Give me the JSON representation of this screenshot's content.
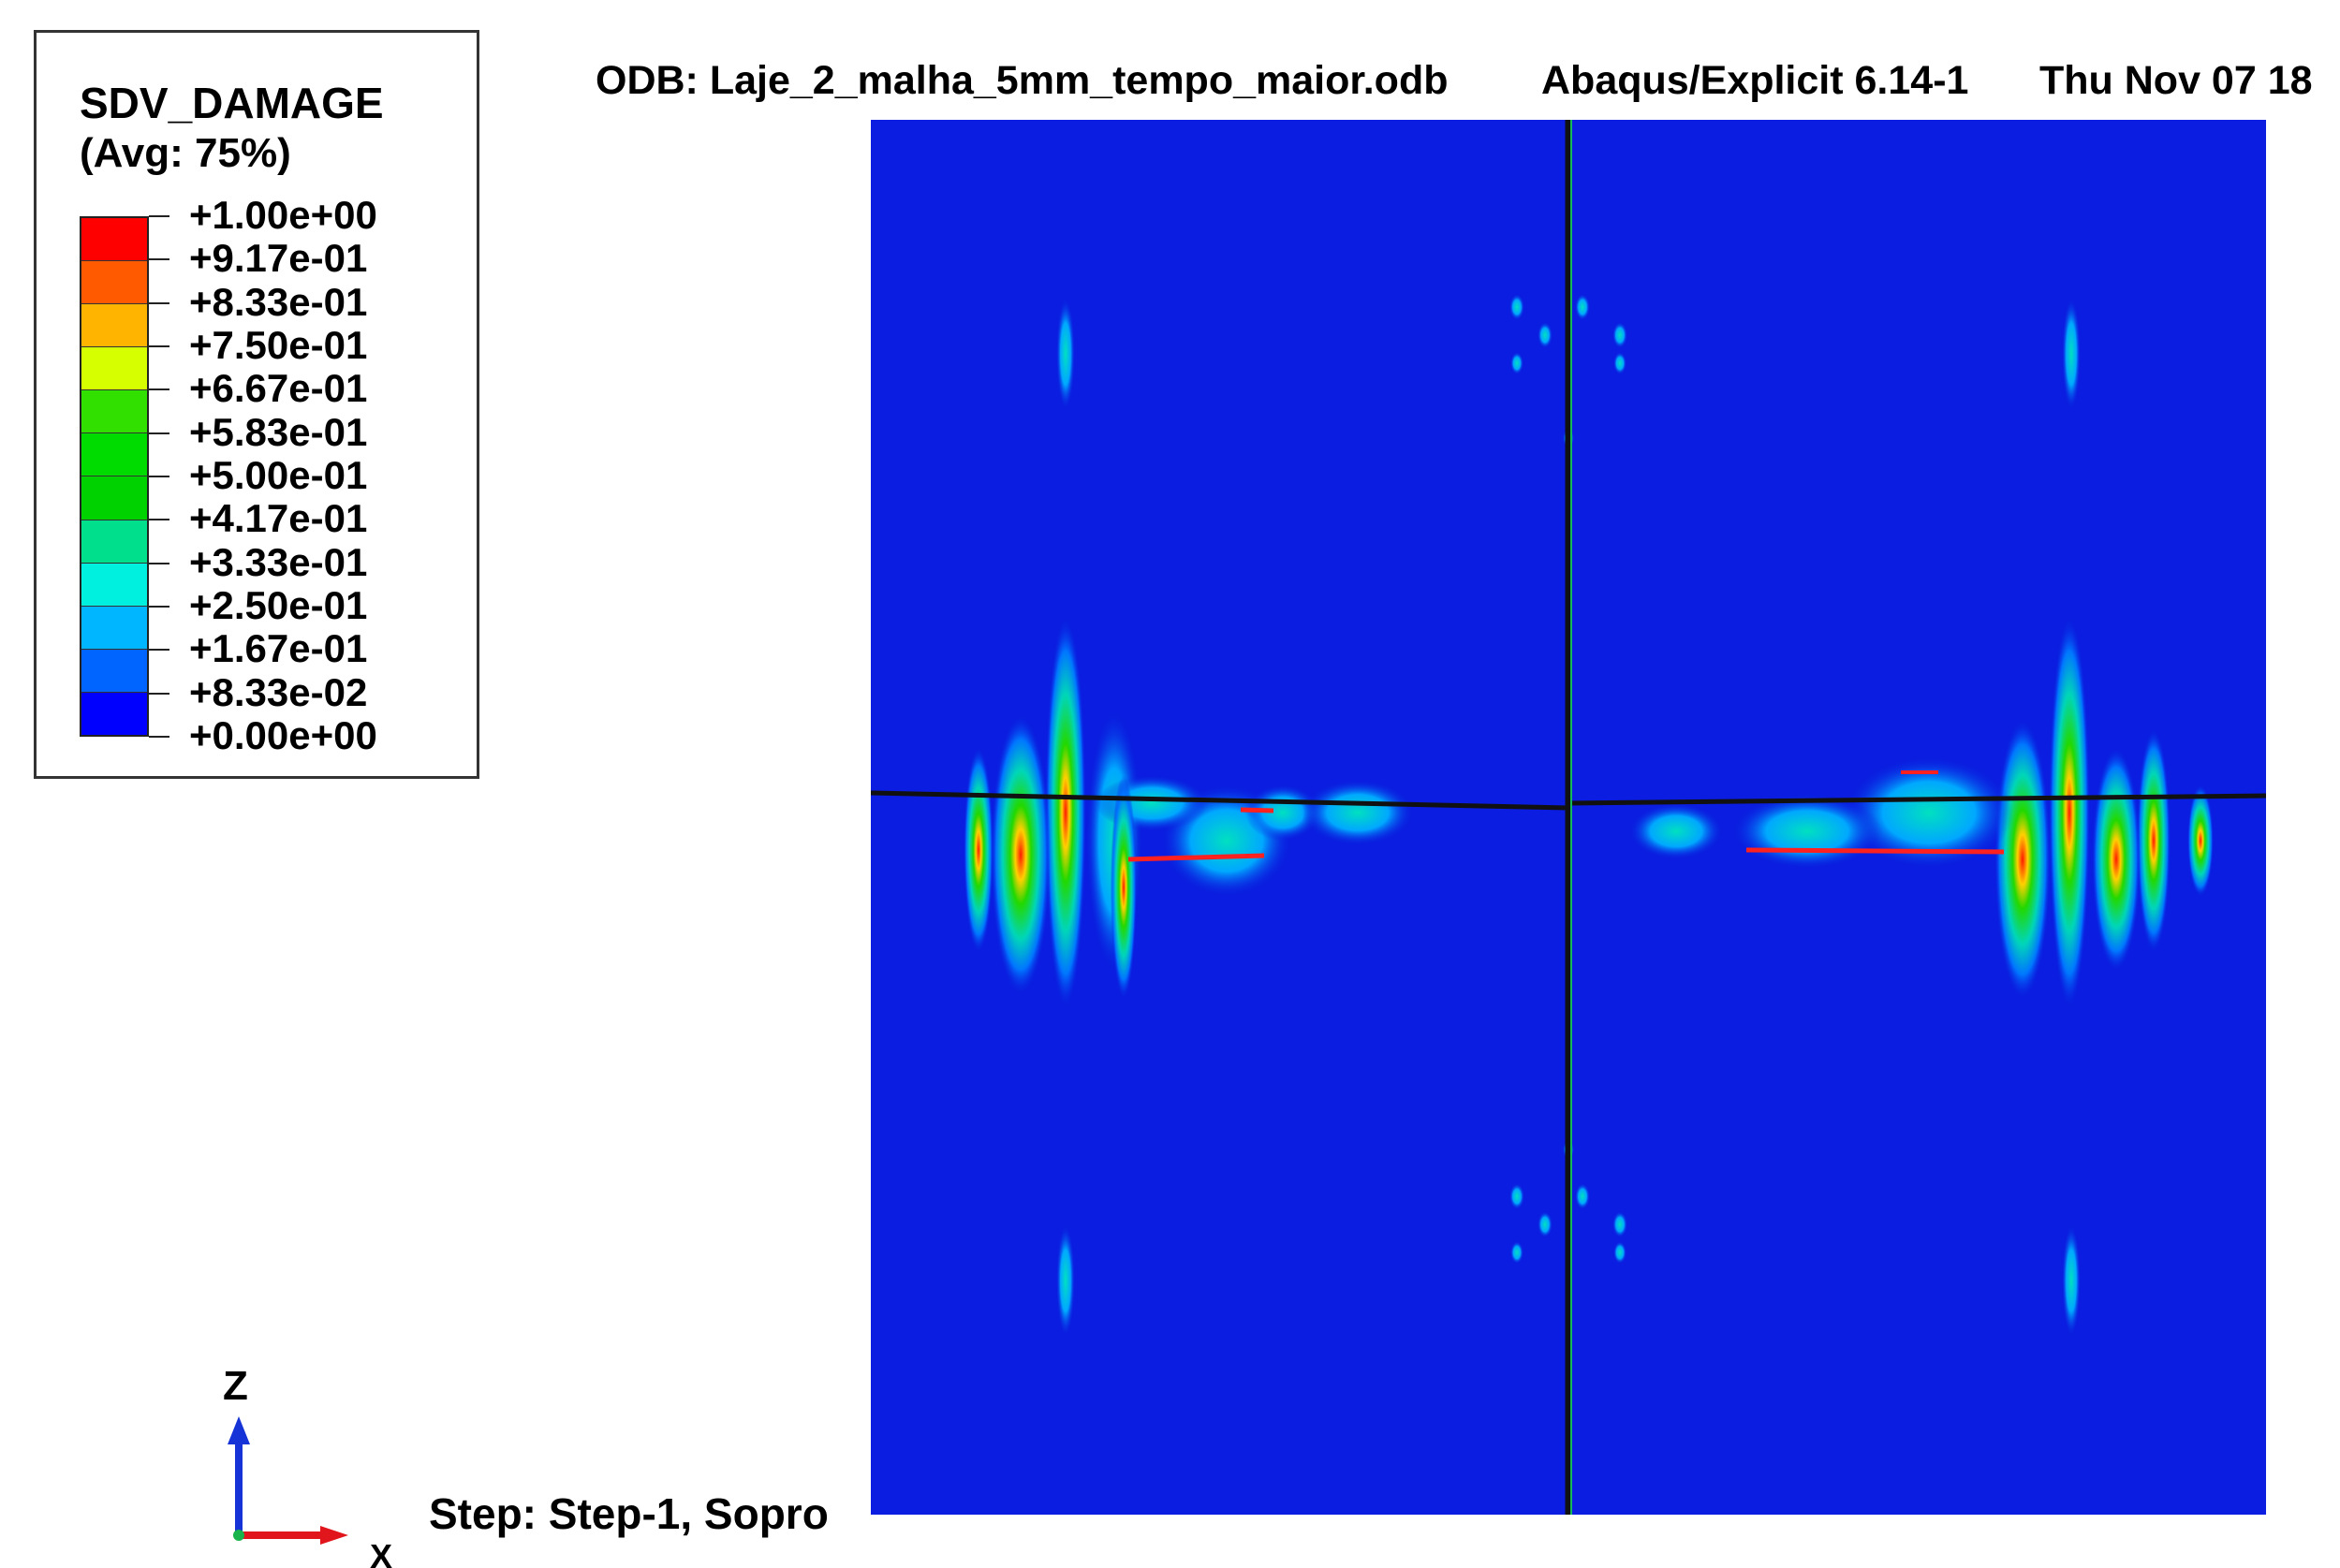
{
  "header": {
    "odb": "ODB: Laje_2_malha_5mm_tempo_maior.odb",
    "solver": "Abaqus/Explicit 6.14-1",
    "date": "Thu Nov 07 18"
  },
  "legend": {
    "title": "SDV_DAMAGE",
    "avg": "(Avg: 75%)",
    "colors": [
      "#ff0000",
      "#ff5a00",
      "#ffb400",
      "#d6ff00",
      "#32e000",
      "#00dc00",
      "#00d200",
      "#00e08c",
      "#00f0e0",
      "#00b6ff",
      "#0064ff",
      "#0000ff"
    ],
    "ticks": [
      "+1.00e+00",
      "+9.17e-01",
      "+8.33e-01",
      "+7.50e-01",
      "+6.67e-01",
      "+5.83e-01",
      "+5.00e-01",
      "+4.17e-01",
      "+3.33e-01",
      "+2.50e-01",
      "+1.67e-01",
      "+8.33e-02",
      "+0.00e+00"
    ]
  },
  "contour": {
    "background_color": "#0a1de0",
    "crack_color": "#111111"
  },
  "triad": {
    "z_label": "Z",
    "x_label": "X"
  },
  "step": "Step: Step-1, Sopro"
}
